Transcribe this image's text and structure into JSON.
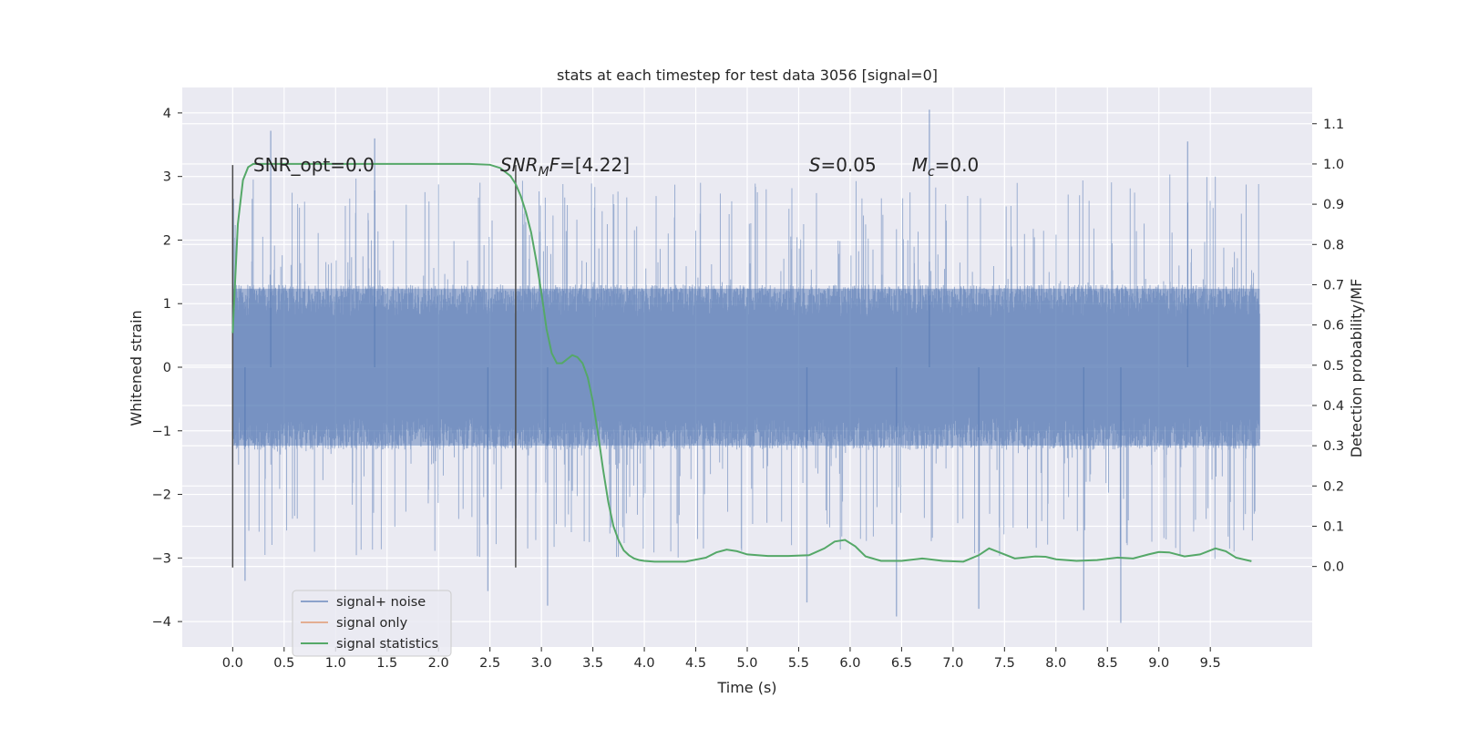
{
  "chart_data": {
    "type": "line",
    "title": "stats at each timestep for test data 3056 [signal=0]",
    "xlabel": "Time (s)",
    "ylabel_left": "Whitened strain",
    "ylabel_right": "Detection probability/MF",
    "xlim": [
      -0.49,
      10.49
    ],
    "ylim_left": [
      -4.4,
      4.4
    ],
    "ylim_right": [
      -0.2,
      1.19
    ],
    "x_ticks": [
      "0.0",
      "0.5",
      "1.0",
      "1.5",
      "2.0",
      "2.5",
      "3.0",
      "3.5",
      "4.0",
      "4.5",
      "5.0",
      "5.5",
      "6.0",
      "6.5",
      "7.0",
      "7.5",
      "8.0",
      "8.5",
      "9.0",
      "9.5"
    ],
    "x_tick_values": [
      0.0,
      0.5,
      1.0,
      1.5,
      2.0,
      2.5,
      3.0,
      3.5,
      4.0,
      4.5,
      5.0,
      5.5,
      6.0,
      6.5,
      7.0,
      7.5,
      8.0,
      8.5,
      9.0,
      9.5
    ],
    "y_left_ticks": [
      "4",
      "3",
      "2",
      "1",
      "0",
      "−1",
      "−2",
      "−3",
      "−4"
    ],
    "y_left_tick_values": [
      4,
      3,
      2,
      1,
      0,
      -1,
      -2,
      -3,
      -4
    ],
    "y_right_ticks": [
      "1.1",
      "1.0",
      "0.9",
      "0.8",
      "0.7",
      "0.6",
      "0.5",
      "0.4",
      "0.3",
      "0.2",
      "0.1",
      "0.0"
    ],
    "y_right_tick_values": [
      1.1,
      1.0,
      0.9,
      0.8,
      0.7,
      0.6,
      0.5,
      0.4,
      0.3,
      0.2,
      0.1,
      0.0
    ],
    "grid": true,
    "legend_position": "lower-left",
    "series": [
      {
        "name": "signal+ noise",
        "axis": "left",
        "color": "#4c72b0",
        "alpha": 0.5,
        "kind": "noise-band",
        "x_range": [
          0.0,
          9.98
        ],
        "envelope_upper": 1.3,
        "envelope_lower": -1.3,
        "max_value": 4.05,
        "min_value": -4.02,
        "notable_peaks": [
          {
            "x": 0.37,
            "y": 3.72
          },
          {
            "x": 6.77,
            "y": 4.05
          },
          {
            "x": 1.38,
            "y": 3.6
          },
          {
            "x": 9.28,
            "y": 3.55
          },
          {
            "x": 8.63,
            "y": -4.02
          },
          {
            "x": 6.45,
            "y": -3.92
          },
          {
            "x": 3.06,
            "y": -3.75
          },
          {
            "x": 8.27,
            "y": -3.82
          },
          {
            "x": 7.25,
            "y": -3.8
          },
          {
            "x": 5.58,
            "y": -3.7
          },
          {
            "x": 2.48,
            "y": -3.52
          },
          {
            "x": 0.12,
            "y": -3.36
          }
        ]
      },
      {
        "name": "signal only",
        "axis": "left",
        "color": "#dd8452",
        "x": [],
        "y": []
      },
      {
        "name": "signal statistics",
        "axis": "right",
        "color": "#55a868",
        "x": [
          0.0,
          0.05,
          0.1,
          0.15,
          0.2,
          0.3,
          0.5,
          1.0,
          1.5,
          2.0,
          2.3,
          2.5,
          2.6,
          2.7,
          2.75,
          2.8,
          2.85,
          2.9,
          2.95,
          3.0,
          3.05,
          3.1,
          3.15,
          3.2,
          3.25,
          3.3,
          3.35,
          3.4,
          3.45,
          3.5,
          3.55,
          3.6,
          3.65,
          3.7,
          3.75,
          3.8,
          3.85,
          3.9,
          3.95,
          4.0,
          4.1,
          4.2,
          4.4,
          4.6,
          4.7,
          4.8,
          4.9,
          5.0,
          5.2,
          5.4,
          5.6,
          5.75,
          5.85,
          5.95,
          6.05,
          6.15,
          6.3,
          6.5,
          6.7,
          6.9,
          7.1,
          7.25,
          7.35,
          7.45,
          7.6,
          7.8,
          7.9,
          8.0,
          8.2,
          8.4,
          8.6,
          8.75,
          8.9,
          9.0,
          9.1,
          9.25,
          9.4,
          9.55,
          9.65,
          9.75,
          9.9
        ],
        "y": [
          0.58,
          0.85,
          0.96,
          0.992,
          1.0,
          1.0,
          1.0,
          1.0,
          1.0,
          1.0,
          1.0,
          0.998,
          0.99,
          0.97,
          0.95,
          0.92,
          0.88,
          0.83,
          0.76,
          0.68,
          0.59,
          0.53,
          0.505,
          0.505,
          0.515,
          0.525,
          0.52,
          0.505,
          0.47,
          0.41,
          0.33,
          0.24,
          0.16,
          0.1,
          0.065,
          0.04,
          0.028,
          0.02,
          0.016,
          0.014,
          0.012,
          0.012,
          0.012,
          0.022,
          0.035,
          0.042,
          0.038,
          0.03,
          0.026,
          0.026,
          0.028,
          0.045,
          0.062,
          0.066,
          0.05,
          0.025,
          0.014,
          0.014,
          0.02,
          0.014,
          0.012,
          0.028,
          0.045,
          0.035,
          0.02,
          0.025,
          0.024,
          0.018,
          0.014,
          0.016,
          0.022,
          0.02,
          0.03,
          0.036,
          0.035,
          0.025,
          0.03,
          0.045,
          0.038,
          0.022,
          0.013
        ]
      }
    ],
    "vertical_lines": [
      0.0,
      2.75
    ],
    "vertical_line_color": "#4a4a4a",
    "vertical_line_range": [
      -3.15,
      3.18
    ],
    "annotations": [
      {
        "id": "snr-opt",
        "text": "SNR_opt=0.0",
        "x": 0.2,
        "y": 3.08
      },
      {
        "id": "snr-mf",
        "main": "SNR",
        "sub": "M",
        "rest": "F=[4.22]",
        "x": 2.6,
        "y": 3.08
      },
      {
        "id": "s-val",
        "main": "S",
        "sub": "",
        "rest": "=0.05",
        "x": 5.6,
        "y": 3.08
      },
      {
        "id": "mc-val",
        "main": "M",
        "sub": "c",
        "rest": "=0.0",
        "x": 6.6,
        "y": 3.08
      }
    ]
  }
}
